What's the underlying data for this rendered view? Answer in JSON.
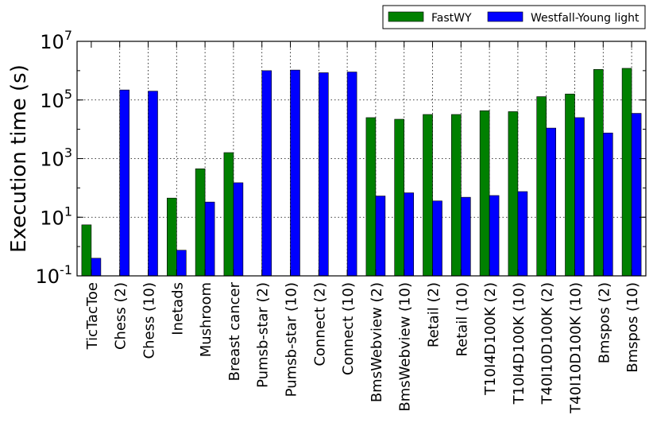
{
  "chart_data": {
    "type": "bar",
    "title": "",
    "xlabel": "",
    "ylabel": "Execution time (s)",
    "yscale": "log",
    "ylim": [
      0.1,
      10000000
    ],
    "yticks": [
      {
        "value": 0.1,
        "base": "10",
        "exp": "-1"
      },
      {
        "value": 10,
        "base": "10",
        "exp": "1"
      },
      {
        "value": 1000,
        "base": "10",
        "exp": "3"
      },
      {
        "value": 100000,
        "base": "10",
        "exp": "5"
      },
      {
        "value": 10000000,
        "base": "10",
        "exp": "7"
      }
    ],
    "grid": "dotted",
    "legend_position": "top-right",
    "categories": [
      "TicTacToe",
      "Chess (2)",
      "Chess (10)",
      "Inetads",
      "Mushroom",
      "Breast cancer",
      "Pumsb-star (2)",
      "Pumsb-star (10)",
      "Connect (2)",
      "Connect (10)",
      "BmsWebview (2)",
      "BmsWebview (10)",
      "Retail (2)",
      "Retail (10)",
      "T10I4D100K (2)",
      "T10I4D100K (10)",
      "T40I10D100K (2)",
      "T40I10D100K (10)",
      "Bmspos (2)",
      "Bmspos (10)"
    ],
    "series": [
      {
        "name": "FastWY",
        "color": "#008000",
        "values": [
          5.5,
          null,
          null,
          45,
          450,
          1600,
          null,
          null,
          null,
          null,
          25000,
          22000,
          32000,
          32000,
          43000,
          40000,
          130000,
          160000,
          1100000,
          1200000
        ]
      },
      {
        "name": "Westfall-Young light",
        "color": "#0000ff",
        "values": [
          0.4,
          220000,
          200000,
          0.75,
          33,
          150,
          1000000,
          1050000,
          850000,
          900000,
          53,
          68,
          36,
          48,
          55,
          75,
          11000,
          25000,
          7500,
          35000
        ]
      }
    ]
  }
}
